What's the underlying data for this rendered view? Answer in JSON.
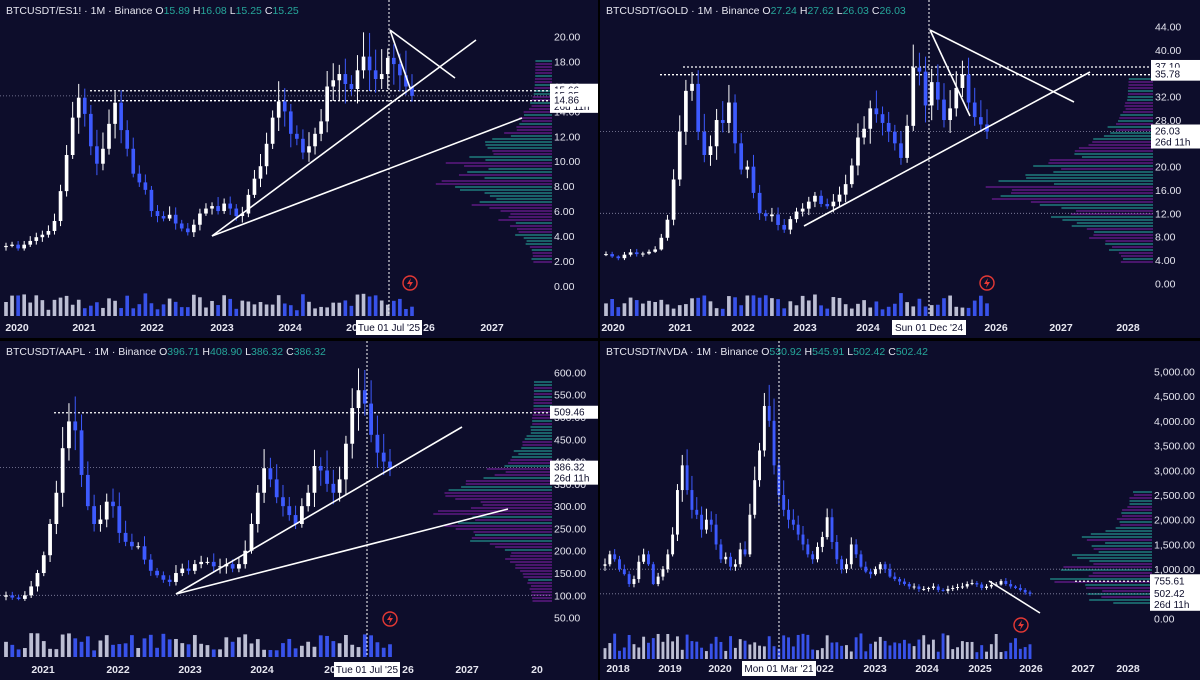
{
  "chart_data": [
    {
      "type": "candlestick",
      "symbol": "BTCUSDT/ES1!",
      "interval": "1M",
      "exchange": "Binance",
      "ohlc": {
        "O": "15.89",
        "H": "16.08",
        "L": "15.25",
        "C": "15.25"
      },
      "y_ticks": [
        "20.00",
        "18.00",
        "16.00",
        "14.00",
        "12.00",
        "10.00",
        "8.00",
        "6.00",
        "4.00",
        "2.00",
        "0.00"
      ],
      "ylim": [
        -0.5,
        21.5
      ],
      "x_ticks": [
        "2020",
        "2021",
        "2022",
        "2023",
        "2024",
        "20",
        "26",
        "2027"
      ],
      "price_labels": [
        "15.66",
        "15.25",
        "26d 11h",
        "14.86"
      ],
      "cursor_label": "Tue 01 Jul '25",
      "close": [
        3.2,
        3.3,
        3.0,
        3.3,
        3.6,
        3.9,
        4.1,
        4.4,
        5.2,
        7.6,
        10.5,
        13.5,
        15.1,
        13.8,
        11.2,
        9.8,
        11.0,
        13.0,
        14.7,
        12.5,
        11.0,
        9.0,
        8.3,
        7.7,
        6.0,
        5.6,
        5.4,
        5.7,
        5.0,
        4.6,
        4.3,
        4.9,
        5.8,
        6.2,
        6.4,
        6.0,
        6.6,
        6.2,
        5.6,
        5.8,
        7.3,
        8.6,
        9.6,
        11.4,
        13.5,
        14.8,
        14.0,
        12.2,
        11.8,
        10.7,
        11.2,
        12.2,
        13.2,
        16.0,
        16.5,
        17.0,
        16.2,
        15.8,
        17.3,
        18.4,
        17.3,
        16.6,
        17.0,
        18.3,
        17.8,
        16.9,
        16.0,
        15.25
      ]
    },
    {
      "type": "candlestick",
      "symbol": "BTCUSDT/GOLD",
      "interval": "1M",
      "exchange": "Binance",
      "ohlc": {
        "O": "27.24",
        "H": "27.62",
        "L": "26.03",
        "C": "26.03"
      },
      "y_ticks": [
        "44.00",
        "40.00",
        "36.00",
        "32.00",
        "28.00",
        "24.00",
        "20.00",
        "16.00",
        "12.00",
        "8.00",
        "4.00",
        "0.00"
      ],
      "ylim": [
        -1.5,
        45.5
      ],
      "x_ticks": [
        "2020",
        "2021",
        "2022",
        "2023",
        "2024",
        "26",
        "2026",
        "2027",
        "2028"
      ],
      "price_labels": [
        "37.10",
        "35.78",
        "26.03",
        "26d 11h"
      ],
      "cursor_label": "Sun 01 Dec '24",
      "close": [
        5.0,
        4.6,
        4.3,
        4.9,
        5.3,
        5.0,
        5.1,
        5.4,
        5.8,
        7.8,
        10.9,
        17.8,
        26.0,
        33.0,
        34.2,
        26.0,
        22.0,
        23.5,
        28.0,
        27.5,
        31.0,
        24.0,
        19.5,
        20.0,
        15.5,
        12.0,
        11.5,
        11.8,
        10.0,
        9.2,
        11.0,
        12.3,
        12.8,
        14.0,
        15.0,
        13.6,
        13.2,
        14.0,
        15.2,
        17.0,
        20.2,
        25.0,
        26.5,
        30.0,
        29.0,
        27.5,
        26.0,
        24.0,
        21.5,
        27.0,
        37.0,
        36.3,
        30.5,
        34.5,
        31.5,
        28.0,
        30.0,
        33.5,
        35.8,
        31.0,
        28.5,
        27.24,
        26.03
      ]
    },
    {
      "type": "candlestick",
      "symbol": "BTCUSDT/AAPL",
      "interval": "1M",
      "exchange": "Binance",
      "ohlc": {
        "O": "396.71",
        "H": "408.90",
        "L": "386.32",
        "C": "386.32"
      },
      "y_ticks": [
        "600.00",
        "550.00",
        "500.00",
        "450.00",
        "400.00",
        "350.00",
        "300.00",
        "250.00",
        "200.00",
        "150.00",
        "100.00",
        "50.00"
      ],
      "ylim": [
        20,
        630
      ],
      "x_ticks": [
        "2021",
        "2022",
        "2023",
        "2024",
        "20",
        "26",
        "2027",
        "20"
      ],
      "price_labels": [
        "509.46",
        "386.32",
        "26d 11h"
      ],
      "cursor_label": "Tue 01 Jul '25",
      "close": [
        100,
        95,
        92,
        100,
        120,
        150,
        190,
        260,
        330,
        430,
        490,
        470,
        370,
        300,
        260,
        270,
        310,
        300,
        240,
        220,
        210,
        210,
        180,
        155,
        145,
        135,
        130,
        150,
        160,
        155,
        170,
        175,
        175,
        165,
        165,
        170,
        160,
        170,
        200,
        260,
        330,
        385,
        360,
        320,
        300,
        280,
        260,
        300,
        330,
        390,
        380,
        350,
        330,
        360,
        440,
        520,
        560,
        530,
        460,
        420,
        400,
        386
      ]
    },
    {
      "type": "candlestick",
      "symbol": "BTCUSDT/NVDA",
      "interval": "1M",
      "exchange": "Binance",
      "ohlc": {
        "O": "530.92",
        "H": "545.91",
        "L": "502.42",
        "C": "502.42"
      },
      "y_ticks": [
        "5,000.00",
        "4,500.00",
        "4,000.00",
        "3,500.00",
        "3,000.00",
        "2,500.00",
        "2,000.00",
        "1,500.00",
        "1,000.00",
        "0.00"
      ],
      "ylim": [
        -250,
        5250
      ],
      "x_ticks": [
        "2018",
        "2019",
        "2020",
        "2021",
        "2022",
        "2023",
        "2024",
        "2025",
        "2026",
        "2027",
        "2028"
      ],
      "price_labels": [
        "755.61",
        "502.42",
        "26d 11h"
      ],
      "cursor_label": "Mon 01 Mar '21",
      "close": [
        1100,
        1300,
        1200,
        1000,
        900,
        700,
        800,
        1150,
        1300,
        1100,
        700,
        850,
        1000,
        1300,
        1700,
        2600,
        3100,
        2600,
        2200,
        2100,
        1800,
        2000,
        1900,
        1500,
        1200,
        1250,
        1050,
        1100,
        1400,
        1300,
        2100,
        2800,
        3400,
        4300,
        4000,
        3100,
        2500,
        2200,
        2000,
        1900,
        1700,
        1500,
        1300,
        1200,
        1450,
        1650,
        2050,
        1550,
        1200,
        1000,
        1100,
        1500,
        1300,
        1050,
        950,
        900,
        1000,
        1100,
        1000,
        850,
        800,
        750,
        700,
        650,
        650,
        600,
        600,
        620,
        650,
        580,
        560,
        600,
        620,
        640,
        650,
        700,
        720,
        690,
        620,
        650,
        680,
        690,
        760,
        700,
        650,
        620,
        580,
        530,
        502
      ]
    }
  ]
}
